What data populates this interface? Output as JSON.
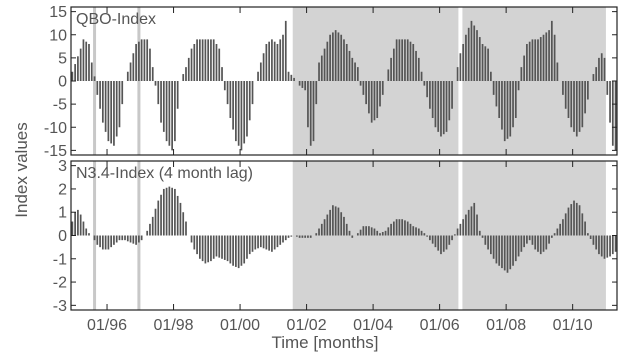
{
  "figure": {
    "ylabel": "Index values",
    "xlabel": "Time [months]"
  },
  "colors": {
    "bar": "#555555",
    "shade": "#d3d3d3",
    "marker_light": "#c8c8c8",
    "axis": "#222222",
    "text": "#555555"
  },
  "chart_data": [
    {
      "type": "bar",
      "title": "QBO-Index",
      "x_range": [
        "1994-12",
        "2011-04"
      ],
      "x_ticks": [
        "1996-01",
        "1998-01",
        "2000-01",
        "2002-01",
        "2004-01",
        "2006-01",
        "2008-01",
        "2010-01"
      ],
      "x_ticklabels": [
        "01/96",
        "01/98",
        "01/00",
        "01/02",
        "01/04",
        "01/06",
        "01/08",
        "01/10"
      ],
      "ylim": [
        -16,
        16
      ],
      "y_ticks": [
        15,
        10,
        5,
        0,
        -5,
        -10,
        -15
      ],
      "y_ticklabels": [
        "15",
        "10",
        "5",
        "0",
        "-5",
        "-10",
        "-15"
      ],
      "grid": false,
      "shaded_periods": [
        [
          "2001-08",
          "2006-08"
        ],
        [
          "2006-09",
          "2010-12"
        ]
      ],
      "marker_lines_light": [
        "1995-08",
        "1996-12"
      ],
      "marker_lines_white": [
        "2006-08"
      ],
      "anchors": [
        [
          "1994-12",
          2
        ],
        [
          "1995-03",
          7
        ],
        [
          "1995-04",
          9
        ],
        [
          "1995-06",
          8
        ],
        [
          "1995-07",
          4
        ],
        [
          "1995-08",
          1
        ],
        [
          "1995-09",
          -3
        ],
        [
          "1995-11",
          -9
        ],
        [
          "1996-01",
          -13
        ],
        [
          "1996-03",
          -14
        ],
        [
          "1996-05",
          -10
        ],
        [
          "1996-06",
          -5
        ],
        [
          "1996-07",
          0
        ],
        [
          "1996-09",
          4
        ],
        [
          "1996-11",
          8
        ],
        [
          "1997-01",
          9
        ],
        [
          "1997-03",
          9
        ],
        [
          "1997-04",
          7
        ],
        [
          "1997-05",
          3
        ],
        [
          "1997-06",
          -1
        ],
        [
          "1997-08",
          -9
        ],
        [
          "1997-10",
          -13
        ],
        [
          "1997-12",
          -15
        ],
        [
          "1998-01",
          -13
        ],
        [
          "1998-02",
          -6
        ],
        [
          "1998-03",
          0
        ],
        [
          "1998-05",
          3
        ],
        [
          "1998-07",
          7
        ],
        [
          "1998-09",
          9
        ],
        [
          "1999-01",
          9
        ],
        [
          "1999-03",
          9
        ],
        [
          "1999-05",
          7
        ],
        [
          "1999-06",
          3
        ],
        [
          "1999-07",
          -2
        ],
        [
          "1999-09",
          -8
        ],
        [
          "1999-11",
          -13
        ],
        [
          "2000-01",
          -15
        ],
        [
          "2000-03",
          -12
        ],
        [
          "2000-05",
          -5
        ],
        [
          "2000-06",
          0
        ],
        [
          "2000-08",
          4
        ],
        [
          "2000-10",
          8
        ],
        [
          "2000-12",
          9
        ],
        [
          "2001-02",
          8
        ],
        [
          "2001-04",
          10
        ],
        [
          "2001-05",
          13
        ],
        [
          "2001-06",
          2
        ],
        [
          "2001-09",
          0
        ],
        [
          "2001-10",
          -1
        ],
        [
          "2001-12",
          -2
        ],
        [
          "2002-01",
          -10
        ],
        [
          "2002-02",
          -14
        ],
        [
          "2002-03",
          -13
        ],
        [
          "2002-04",
          -5
        ],
        [
          "2002-05",
          4
        ],
        [
          "2002-07",
          7
        ],
        [
          "2002-09",
          10
        ],
        [
          "2002-11",
          11
        ],
        [
          "2003-01",
          10
        ],
        [
          "2003-03",
          8
        ],
        [
          "2003-05",
          5
        ],
        [
          "2003-07",
          3
        ],
        [
          "2003-08",
          -1
        ],
        [
          "2003-10",
          -5
        ],
        [
          "2003-12",
          -9
        ],
        [
          "2004-02",
          -8
        ],
        [
          "2004-04",
          -3
        ],
        [
          "2004-05",
          0
        ],
        [
          "2004-07",
          5
        ],
        [
          "2004-09",
          9
        ],
        [
          "2004-11",
          9
        ],
        [
          "2005-01",
          9
        ],
        [
          "2005-03",
          8
        ],
        [
          "2005-05",
          5
        ],
        [
          "2005-06",
          2
        ],
        [
          "2005-07",
          -1
        ],
        [
          "2005-09",
          -6
        ],
        [
          "2005-11",
          -10
        ],
        [
          "2006-01",
          -12
        ],
        [
          "2006-03",
          -11
        ],
        [
          "2006-05",
          -6
        ],
        [
          "2006-06",
          0
        ],
        [
          "2006-08",
          6
        ],
        [
          "2006-10",
          10
        ],
        [
          "2006-12",
          13
        ],
        [
          "2007-02",
          11
        ],
        [
          "2007-04",
          8
        ],
        [
          "2007-06",
          7
        ],
        [
          "2007-07",
          2
        ],
        [
          "2007-08",
          -3
        ],
        [
          "2007-10",
          -8
        ],
        [
          "2007-12",
          -13
        ],
        [
          "2008-02",
          -12
        ],
        [
          "2008-04",
          -8
        ],
        [
          "2008-05",
          -2
        ],
        [
          "2008-06",
          3
        ],
        [
          "2008-08",
          8
        ],
        [
          "2008-10",
          9
        ],
        [
          "2008-12",
          9
        ],
        [
          "2009-02",
          10
        ],
        [
          "2009-04",
          11
        ],
        [
          "2009-05",
          13
        ],
        [
          "2009-06",
          10
        ],
        [
          "2009-07",
          4
        ],
        [
          "2009-08",
          0
        ],
        [
          "2009-10",
          -6
        ],
        [
          "2009-12",
          -10
        ],
        [
          "2010-02",
          -12
        ],
        [
          "2010-04",
          -10
        ],
        [
          "2010-06",
          -4
        ],
        [
          "2010-07",
          0
        ],
        [
          "2010-09",
          3
        ],
        [
          "2010-10",
          5
        ],
        [
          "2010-11",
          6
        ],
        [
          "2010-12",
          5
        ],
        [
          "2011-01",
          -3
        ],
        [
          "2011-02",
          -9
        ],
        [
          "2011-03",
          -14
        ],
        [
          "2011-04",
          -15
        ]
      ]
    },
    {
      "type": "bar",
      "title": "N3.4-Index (4 month lag)",
      "x_range": [
        "1994-12",
        "2011-04"
      ],
      "x_ticks": [
        "1996-01",
        "1998-01",
        "2000-01",
        "2002-01",
        "2004-01",
        "2006-01",
        "2008-01",
        "2010-01"
      ],
      "x_ticklabels": [
        "01/96",
        "01/98",
        "01/00",
        "01/02",
        "01/04",
        "01/06",
        "01/08",
        "01/10"
      ],
      "ylim": [
        -3.2,
        3.2
      ],
      "y_ticks": [
        3,
        2,
        1,
        0,
        -1,
        -2,
        -3
      ],
      "y_ticklabels": [
        "3",
        "2",
        "1",
        "0",
        "-1",
        "-2",
        "-3"
      ],
      "grid": false,
      "shaded_periods": [
        [
          "2001-08",
          "2006-08"
        ],
        [
          "2006-09",
          "2010-12"
        ]
      ],
      "marker_lines_light": [
        "1995-08",
        "1996-12"
      ],
      "marker_lines_white": [
        "2006-08"
      ],
      "anchors": [
        [
          "1994-12",
          0.6
        ],
        [
          "1995-01",
          1.0
        ],
        [
          "1995-02",
          1.1
        ],
        [
          "1995-03",
          0.9
        ],
        [
          "1995-04",
          0.6
        ],
        [
          "1995-05",
          0.3
        ],
        [
          "1995-06",
          0.1
        ],
        [
          "1995-07",
          0.0
        ],
        [
          "1995-08",
          -0.2
        ],
        [
          "1995-09",
          -0.4
        ],
        [
          "1995-11",
          -0.6
        ],
        [
          "1996-01",
          -0.6
        ],
        [
          "1996-03",
          -0.4
        ],
        [
          "1996-05",
          -0.2
        ],
        [
          "1996-07",
          -0.2
        ],
        [
          "1996-09",
          -0.3
        ],
        [
          "1996-11",
          -0.4
        ],
        [
          "1997-01",
          -0.2
        ],
        [
          "1997-03",
          0.2
        ],
        [
          "1997-05",
          0.8
        ],
        [
          "1997-07",
          1.5
        ],
        [
          "1997-09",
          2.0
        ],
        [
          "1997-11",
          2.1
        ],
        [
          "1998-01",
          2.0
        ],
        [
          "1998-03",
          1.4
        ],
        [
          "1998-05",
          0.6
        ],
        [
          "1998-06",
          0.0
        ],
        [
          "1998-08",
          -0.6
        ],
        [
          "1998-10",
          -1.0
        ],
        [
          "1998-12",
          -1.2
        ],
        [
          "1999-02",
          -1.1
        ],
        [
          "1999-04",
          -0.9
        ],
        [
          "1999-06",
          -1.0
        ],
        [
          "1999-08",
          -1.1
        ],
        [
          "1999-10",
          -1.3
        ],
        [
          "1999-12",
          -1.4
        ],
        [
          "2000-02",
          -1.2
        ],
        [
          "2000-04",
          -0.8
        ],
        [
          "2000-06",
          -0.6
        ],
        [
          "2000-08",
          -0.5
        ],
        [
          "2000-10",
          -0.6
        ],
        [
          "2000-12",
          -0.7
        ],
        [
          "2001-02",
          -0.5
        ],
        [
          "2001-04",
          -0.3
        ],
        [
          "2001-06",
          -0.1
        ],
        [
          "2001-08",
          0.0
        ],
        [
          "2001-10",
          -0.1
        ],
        [
          "2001-12",
          -0.1
        ],
        [
          "2002-02",
          -0.1
        ],
        [
          "2002-04",
          0.1
        ],
        [
          "2002-06",
          0.5
        ],
        [
          "2002-08",
          0.9
        ],
        [
          "2002-10",
          1.3
        ],
        [
          "2002-12",
          1.2
        ],
        [
          "2003-02",
          0.8
        ],
        [
          "2003-04",
          0.2
        ],
        [
          "2003-05",
          -0.1
        ],
        [
          "2003-07",
          0.1
        ],
        [
          "2003-09",
          0.4
        ],
        [
          "2003-11",
          0.4
        ],
        [
          "2004-01",
          0.3
        ],
        [
          "2004-03",
          0.1
        ],
        [
          "2004-05",
          0.2
        ],
        [
          "2004-07",
          0.5
        ],
        [
          "2004-09",
          0.7
        ],
        [
          "2004-11",
          0.7
        ],
        [
          "2005-01",
          0.6
        ],
        [
          "2005-03",
          0.4
        ],
        [
          "2005-05",
          0.3
        ],
        [
          "2005-07",
          0.1
        ],
        [
          "2005-09",
          -0.2
        ],
        [
          "2005-11",
          -0.5
        ],
        [
          "2006-01",
          -0.8
        ],
        [
          "2006-03",
          -0.6
        ],
        [
          "2006-05",
          -0.2
        ],
        [
          "2006-07",
          0.3
        ],
        [
          "2006-09",
          0.7
        ],
        [
          "2006-11",
          1.1
        ],
        [
          "2007-01",
          1.4
        ],
        [
          "2007-02",
          0.9
        ],
        [
          "2007-03",
          0.2
        ],
        [
          "2007-05",
          -0.4
        ],
        [
          "2007-07",
          -0.8
        ],
        [
          "2007-09",
          -1.2
        ],
        [
          "2007-11",
          -1.4
        ],
        [
          "2008-01",
          -1.6
        ],
        [
          "2008-03",
          -1.3
        ],
        [
          "2008-05",
          -0.9
        ],
        [
          "2008-07",
          -0.5
        ],
        [
          "2008-09",
          -0.2
        ],
        [
          "2008-11",
          -0.6
        ],
        [
          "2009-01",
          -0.8
        ],
        [
          "2009-03",
          -0.6
        ],
        [
          "2009-05",
          -0.1
        ],
        [
          "2009-07",
          0.3
        ],
        [
          "2009-09",
          0.7
        ],
        [
          "2009-11",
          1.2
        ],
        [
          "2010-01",
          1.5
        ],
        [
          "2010-03",
          1.3
        ],
        [
          "2010-05",
          0.6
        ],
        [
          "2010-06",
          0.1
        ],
        [
          "2010-08",
          -0.4
        ],
        [
          "2010-10",
          -0.8
        ],
        [
          "2010-12",
          -1.0
        ],
        [
          "2011-02",
          -0.9
        ],
        [
          "2011-04",
          -0.7
        ]
      ]
    }
  ]
}
